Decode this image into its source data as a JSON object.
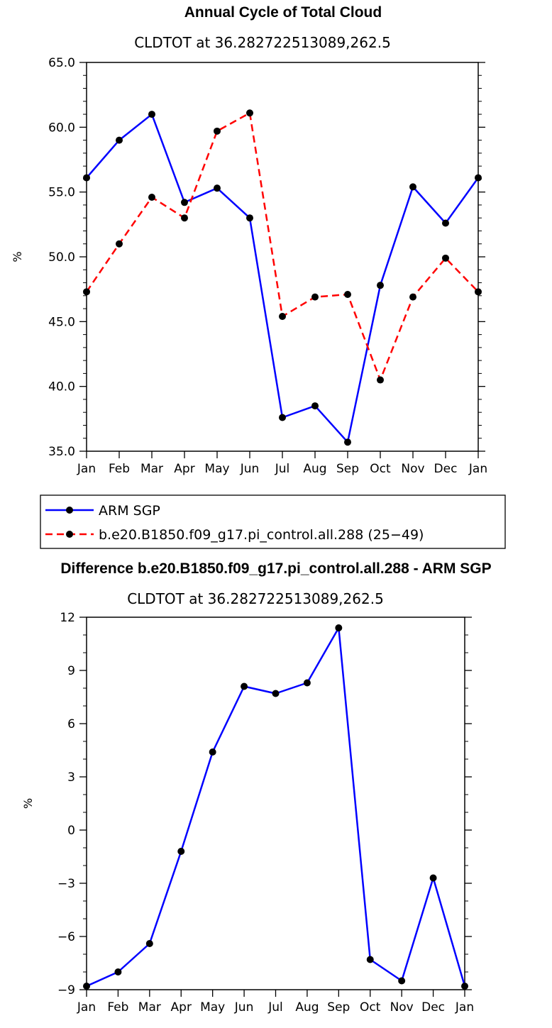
{
  "colors": {
    "obs": "#0000ff",
    "model": "#ff0000",
    "marker": "#000000"
  },
  "chart_data": [
    {
      "type": "line",
      "title": "Annual Cycle of Total Cloud",
      "subtitle": "CLDTOT at 36.282722513089,262.5",
      "xlabel": "",
      "ylabel": "%",
      "categories": [
        "Jan",
        "Feb",
        "Mar",
        "Apr",
        "May",
        "Jun",
        "Jul",
        "Aug",
        "Sep",
        "Oct",
        "Nov",
        "Dec",
        "Jan"
      ],
      "ylim": [
        35.0,
        65.0
      ],
      "yticks": [
        "35.0",
        "40.0",
        "45.0",
        "50.0",
        "55.0",
        "60.0",
        "65.0"
      ],
      "series": [
        {
          "name": "ARM SGP",
          "style": "solid",
          "color": "#0000ff",
          "values": [
            56.1,
            59.0,
            61.0,
            54.2,
            55.3,
            53.0,
            37.6,
            38.5,
            35.7,
            47.8,
            55.4,
            52.6,
            56.1
          ]
        },
        {
          "name": "b.e20.B1850.f09_g17.pi_control.all.288 (25−49)",
          "style": "dashed",
          "color": "#ff0000",
          "values": [
            47.3,
            51.0,
            54.6,
            53.0,
            59.7,
            61.1,
            45.4,
            46.9,
            47.1,
            40.5,
            46.9,
            49.9,
            47.3
          ]
        }
      ]
    },
    {
      "type": "line",
      "title": "Difference b.e20.B1850.f09_g17.pi_control.all.288 - ARM SGP",
      "subtitle": "CLDTOT at 36.282722513089,262.5",
      "xlabel": "",
      "ylabel": "%",
      "categories": [
        "Jan",
        "Feb",
        "Mar",
        "Apr",
        "May",
        "Jun",
        "Jul",
        "Aug",
        "Sep",
        "Oct",
        "Nov",
        "Dec",
        "Jan"
      ],
      "ylim": [
        -9,
        12
      ],
      "yticks": [
        "−9",
        "−6",
        "−3",
        "0",
        "3",
        "6",
        "9",
        "12"
      ],
      "series": [
        {
          "name": "Difference",
          "style": "solid",
          "color": "#0000ff",
          "values": [
            -8.8,
            -8.0,
            -6.4,
            -1.2,
            4.4,
            8.1,
            7.7,
            8.3,
            11.4,
            -7.3,
            -8.5,
            -2.7,
            -8.8
          ]
        }
      ]
    }
  ]
}
